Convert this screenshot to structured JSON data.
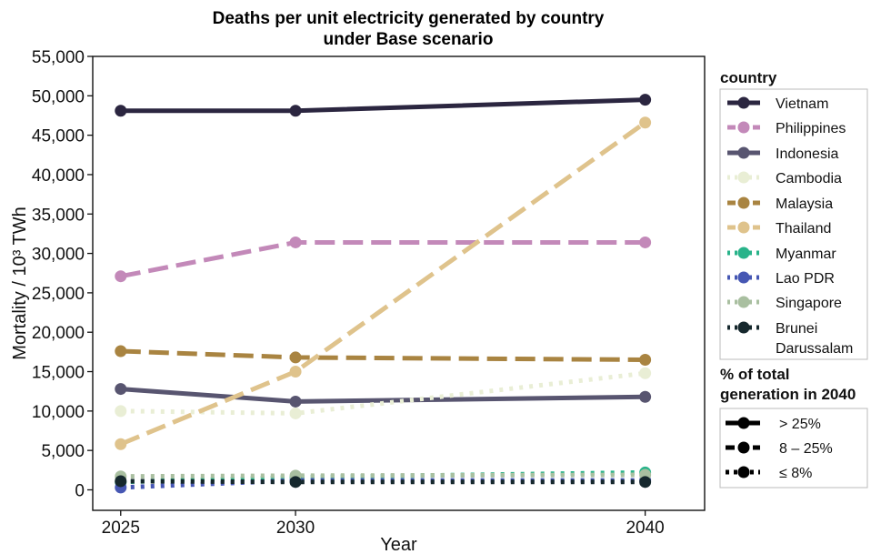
{
  "chart_data": {
    "type": "line",
    "title": [
      "Deaths per unit electricity generated by country",
      "under Base scenario"
    ],
    "xlabel": "Year",
    "ylabel": "Mortality / 10³ TWh",
    "x": [
      2025,
      2030,
      2040
    ],
    "xticks": [
      "2025",
      "2030",
      "2040"
    ],
    "ylim": [
      0,
      55000
    ],
    "yticks": [
      0,
      5000,
      10000,
      15000,
      20000,
      25000,
      30000,
      35000,
      40000,
      45000,
      50000,
      55000
    ],
    "ytick_labels": [
      "0",
      "5,000",
      "10,000",
      "15,000",
      "20,000",
      "25,000",
      "30,000",
      "35,000",
      "40,000",
      "45,000",
      "50,000",
      "55,000"
    ],
    "grid": false,
    "legend_position": "right",
    "series": [
      {
        "name": "Vietnam",
        "values": [
          48100,
          48100,
          49500
        ],
        "color": "#2b2640",
        "style": "solid"
      },
      {
        "name": "Philippines",
        "values": [
          27100,
          31400,
          31400
        ],
        "color": "#c389b9",
        "style": "dashed"
      },
      {
        "name": "Indonesia",
        "values": [
          12800,
          11200,
          11800
        ],
        "color": "#585570",
        "style": "solid"
      },
      {
        "name": "Cambodia",
        "values": [
          10000,
          9700,
          14800
        ],
        "color": "#e9eed5",
        "style": "dotted"
      },
      {
        "name": "Malaysia",
        "values": [
          17600,
          16800,
          16500
        ],
        "color": "#a98441",
        "style": "dashed"
      },
      {
        "name": "Thailand",
        "values": [
          5800,
          15000,
          46600
        ],
        "color": "#dfc38c",
        "style": "dashed"
      },
      {
        "name": "Myanmar",
        "values": [
          1000,
          1600,
          2200
        ],
        "color": "#29b38a",
        "style": "dotted"
      },
      {
        "name": "Lao PDR",
        "values": [
          300,
          1200,
          1200
        ],
        "color": "#4657b3",
        "style": "dotted"
      },
      {
        "name": "Singapore",
        "values": [
          1700,
          1800,
          1900
        ],
        "color": "#a9bfa0",
        "style": "dotted"
      },
      {
        "name": "Brunei Darussalam",
        "values": [
          1100,
          1000,
          1000
        ],
        "color": "#16282d",
        "style": "dotted"
      }
    ],
    "legend": {
      "country_title": "country",
      "country_labels": [
        "Vietnam",
        "Philippines",
        "Indonesia",
        "Cambodia",
        "Malaysia",
        "Thailand",
        "Myanmar",
        "Lao PDR",
        "Singapore",
        [
          "Brunei",
          "Darussalam"
        ]
      ],
      "share_title": [
        "% of total",
        "generation in 2040"
      ],
      "share_items": [
        {
          "label": "> 25%",
          "style": "solid"
        },
        {
          "label": "8 – 25%",
          "style": "dashed"
        },
        {
          "label": "≤ 8%",
          "style": "dotted"
        }
      ]
    }
  }
}
